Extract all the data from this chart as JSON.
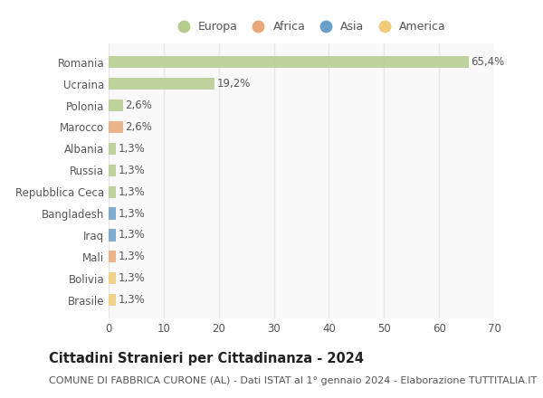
{
  "categories": [
    "Romania",
    "Ucraina",
    "Polonia",
    "Marocco",
    "Albania",
    "Russia",
    "Repubblica Ceca",
    "Bangladesh",
    "Iraq",
    "Mali",
    "Bolivia",
    "Brasile"
  ],
  "values": [
    65.4,
    19.2,
    2.6,
    2.6,
    1.3,
    1.3,
    1.3,
    1.3,
    1.3,
    1.3,
    1.3,
    1.3
  ],
  "labels": [
    "65,4%",
    "19,2%",
    "2,6%",
    "2,6%",
    "1,3%",
    "1,3%",
    "1,3%",
    "1,3%",
    "1,3%",
    "1,3%",
    "1,3%",
    "1,3%"
  ],
  "colors": [
    "#b5cc8e",
    "#b5cc8e",
    "#b5cc8e",
    "#e8a87a",
    "#b5cc8e",
    "#b5cc8e",
    "#b5cc8e",
    "#6b9ec8",
    "#6b9ec8",
    "#e8a87a",
    "#f0cc7a",
    "#f0cc7a"
  ],
  "legend_labels": [
    "Europa",
    "Africa",
    "Asia",
    "America"
  ],
  "legend_colors": [
    "#b5cc8e",
    "#e8a87a",
    "#6b9ec8",
    "#f0cc7a"
  ],
  "xlim": [
    0,
    70
  ],
  "xticks": [
    0,
    10,
    20,
    30,
    40,
    50,
    60,
    70
  ],
  "title": "Cittadini Stranieri per Cittadinanza - 2024",
  "subtitle": "COMUNE DI FABBRICA CURONE (AL) - Dati ISTAT al 1° gennaio 2024 - Elaborazione TUTTITALIA.IT",
  "bg_color": "#ffffff",
  "plot_bg_color": "#f9f9f9",
  "grid_color": "#e8e8e8",
  "bar_height": 0.55,
  "title_fontsize": 10.5,
  "subtitle_fontsize": 8,
  "tick_fontsize": 8.5,
  "label_fontsize": 8.5,
  "legend_fontsize": 9
}
